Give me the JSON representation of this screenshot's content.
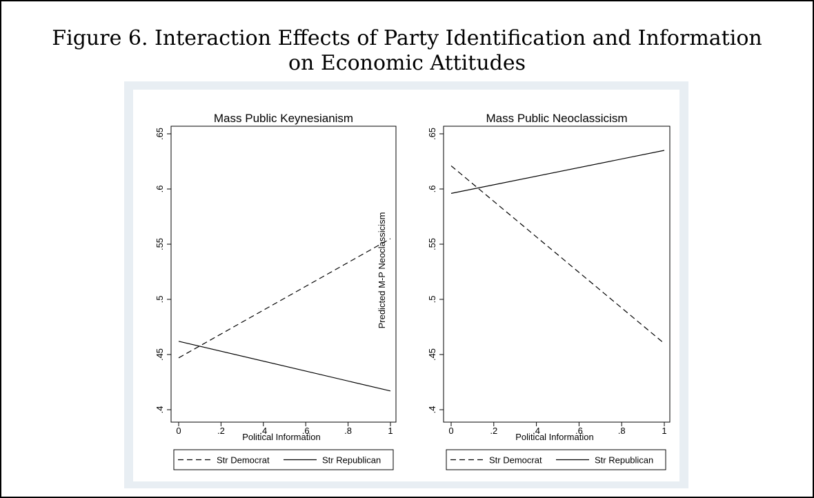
{
  "figure": {
    "title_line1": "Figure 6.  Interaction Effects of Party Identification and Information",
    "title_line2": "on Economic Attitudes"
  },
  "chart_data": [
    {
      "type": "line",
      "title": "Mass Public Keynesianism",
      "xlabel": "Political Information",
      "ylabel": "",
      "xlim": [
        0,
        1
      ],
      "ylim": [
        0.4,
        0.65
      ],
      "x_ticks": [
        "0",
        ".2",
        ".4",
        ".6",
        ".8",
        "1"
      ],
      "y_ticks": [
        ".4",
        ".45",
        ".5",
        ".55",
        ".6",
        ".65"
      ],
      "legend_position": "bottom",
      "series": [
        {
          "name": "Str Democrat",
          "style": "dashed",
          "x": [
            0,
            1
          ],
          "y": [
            0.447,
            0.555
          ]
        },
        {
          "name": "Str Republican",
          "style": "solid",
          "x": [
            0,
            1
          ],
          "y": [
            0.462,
            0.417
          ]
        }
      ]
    },
    {
      "type": "line",
      "title": "Mass Public Neoclassicism",
      "xlabel": "Political Information",
      "ylabel": "Predicted M-P Neoclassicism",
      "xlim": [
        0,
        1
      ],
      "ylim": [
        0.4,
        0.65
      ],
      "x_ticks": [
        "0",
        ".2",
        ".4",
        ".6",
        ".8",
        "1"
      ],
      "y_ticks": [
        ".4",
        ".45",
        ".5",
        ".55",
        ".6",
        ".65"
      ],
      "legend_position": "bottom",
      "series": [
        {
          "name": "Str Democrat",
          "style": "dashed",
          "x": [
            0,
            1
          ],
          "y": [
            0.621,
            0.46
          ]
        },
        {
          "name": "Str Republican",
          "style": "solid",
          "x": [
            0,
            1
          ],
          "y": [
            0.596,
            0.635
          ]
        }
      ]
    }
  ]
}
